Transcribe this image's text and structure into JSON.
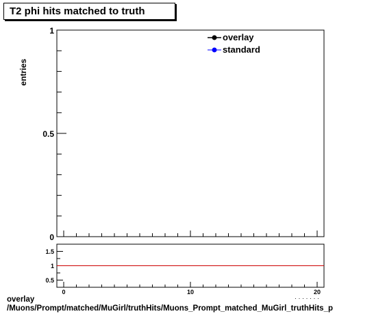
{
  "title": "T2 phi hits matched to truth",
  "footer": {
    "line1": "overlay",
    "line2": "/Muons/Prompt/matched/MuGirl/truthHits/Muons_Prompt_matched_MuGirl_truthHits_p"
  },
  "chart_data": [
    {
      "type": "line",
      "panel": "main",
      "ylabel": "entries",
      "xlabel": "",
      "xlim": [
        0,
        20
      ],
      "ylim": [
        0,
        1
      ],
      "yticks": [
        {
          "v": 0,
          "label": "0"
        },
        {
          "v": 0.5,
          "label": "0.5"
        },
        {
          "v": 1,
          "label": "1"
        }
      ],
      "series": [
        {
          "name": "overlay",
          "color": "#000000",
          "x": [],
          "y": []
        },
        {
          "name": "standard",
          "color": "#0000ff",
          "x": [],
          "y": []
        }
      ],
      "legend": "top-right",
      "grid": false
    },
    {
      "type": "line",
      "panel": "ratio",
      "xlim": [
        0,
        20
      ],
      "ylim": [
        0.25,
        1.75
      ],
      "xticks": [
        {
          "v": 0,
          "label": "0"
        },
        {
          "v": 10,
          "label": "10"
        },
        {
          "v": 20,
          "label": "20"
        }
      ],
      "yticks": [
        {
          "v": 0.5,
          "label": "0.5"
        },
        {
          "v": 1,
          "label": "1"
        },
        {
          "v": 1.5,
          "label": "1.5"
        }
      ],
      "reference_line": {
        "y": 1,
        "color": "#cc0000"
      },
      "xlabel_partial": "· · · · · · · ",
      "grid": false
    }
  ]
}
